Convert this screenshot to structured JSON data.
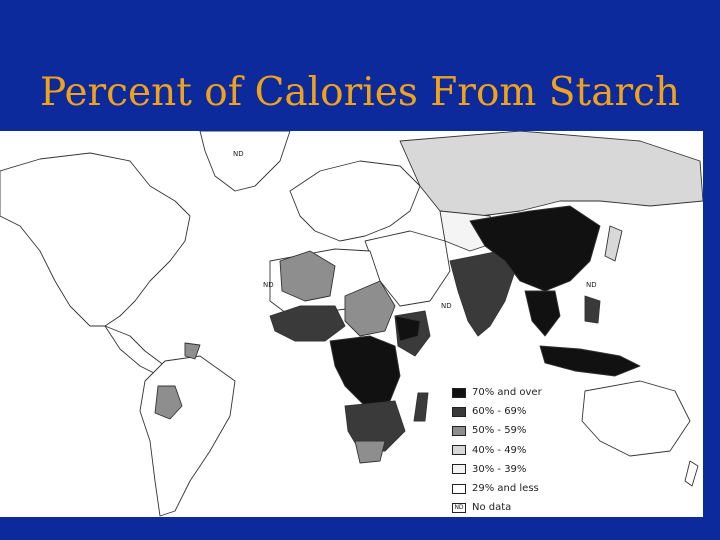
{
  "title": "Percent of Calories From Starch",
  "colors": {
    "background": "#0c2a9c",
    "title": "#f0a21a",
    "map_background": "#ffffff",
    "outline": "#333333"
  },
  "map_labels": {
    "nd_greenland": "ND",
    "nd_west_africa": "ND",
    "nd_middle_east": "ND",
    "nd_east_asia": "ND"
  },
  "legend": [
    {
      "label": "70% and over",
      "swatch": "#111111",
      "swatch_text": ""
    },
    {
      "label": "60% - 69%",
      "swatch": "#3a3a3a",
      "swatch_text": ""
    },
    {
      "label": "50% - 59%",
      "swatch": "#8e8e8e",
      "swatch_text": ""
    },
    {
      "label": "40% - 49%",
      "swatch": "#d8d8d8",
      "swatch_text": ""
    },
    {
      "label": "30% - 39%",
      "swatch": "#f4f4f4",
      "swatch_text": ""
    },
    {
      "label": "29% and less",
      "swatch": "#ffffff",
      "swatch_text": ""
    },
    {
      "label": "No data",
      "swatch": "#ffffff",
      "swatch_text": "ND"
    }
  ]
}
